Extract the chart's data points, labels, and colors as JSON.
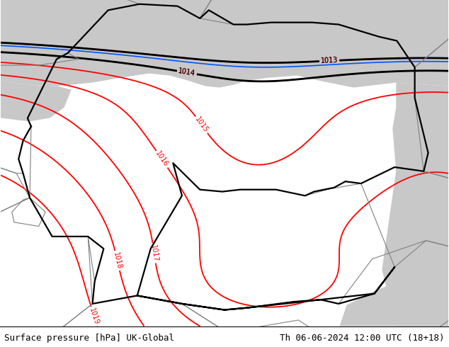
{
  "title_left": "Surface pressure [hPa] UK-Global",
  "title_right": "Th 06-06-2024 12:00 UTC (18+18)",
  "fig_width": 6.34,
  "fig_height": 4.9,
  "dpi": 100,
  "map_bg_green": "#b5e8a0",
  "map_bg_gray": "#c8c8c8",
  "contour_color_red": "#ff0000",
  "contour_color_black": "#000000",
  "contour_color_blue": "#0055ff",
  "border_de_color": "#000000",
  "border_eu_color": "#808080",
  "text_color": "#000000",
  "footer_fontsize": 9.0,
  "label_fontsize": 7.0,
  "levels_red": [
    1013,
    1014,
    1015,
    1016,
    1017,
    1018,
    1019
  ],
  "levels_black": [
    1013
  ],
  "levels_blue": [
    1013
  ]
}
